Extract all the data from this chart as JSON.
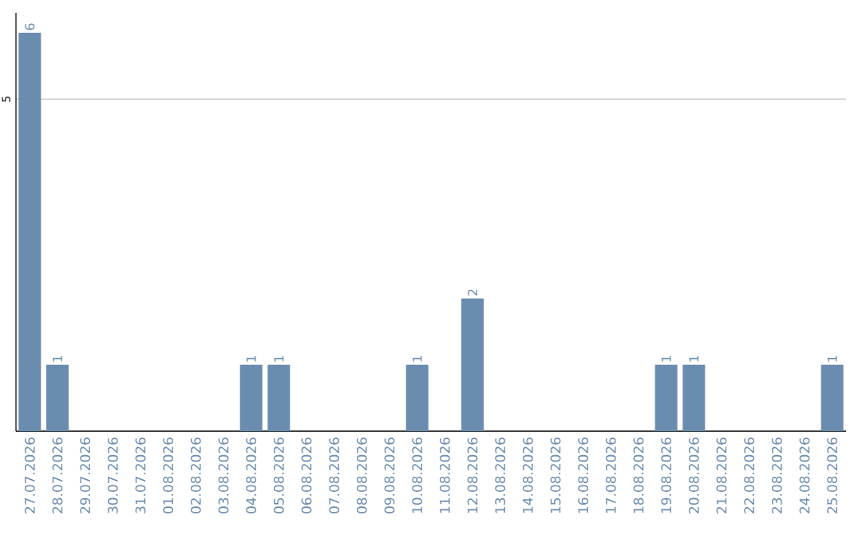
{
  "chart_data": {
    "type": "bar",
    "categories": [
      "27.07.2026",
      "28.07.2026",
      "29.07.2026",
      "30.07.2026",
      "31.07.2026",
      "01.08.2026",
      "02.08.2026",
      "03.08.2026",
      "04.08.2026",
      "05.08.2026",
      "06.08.2026",
      "07.08.2026",
      "08.08.2026",
      "09.08.2026",
      "10.08.2026",
      "11.08.2026",
      "12.08.2026",
      "13.08.2026",
      "14.08.2026",
      "15.08.2026",
      "16.08.2026",
      "17.08.2026",
      "18.08.2026",
      "19.08.2026",
      "20.08.2026",
      "21.08.2026",
      "22.08.2026",
      "23.08.2026",
      "24.08.2026",
      "25.08.2026"
    ],
    "values": [
      6,
      1,
      0,
      0,
      0,
      0,
      0,
      0,
      1,
      1,
      0,
      0,
      0,
      0,
      1,
      0,
      2,
      0,
      0,
      0,
      0,
      0,
      0,
      1,
      1,
      0,
      0,
      0,
      0,
      1
    ],
    "value_labels": [
      "6",
      "1",
      null,
      null,
      null,
      null,
      null,
      null,
      "1",
      "1",
      null,
      null,
      null,
      null,
      "1",
      null,
      "2",
      null,
      null,
      null,
      null,
      null,
      null,
      "1",
      "1",
      null,
      null,
      null,
      null,
      "1"
    ],
    "color": "#6a8caf",
    "ylim": [
      0,
      6.3
    ],
    "yticks": [
      5
    ],
    "grid": "y"
  }
}
